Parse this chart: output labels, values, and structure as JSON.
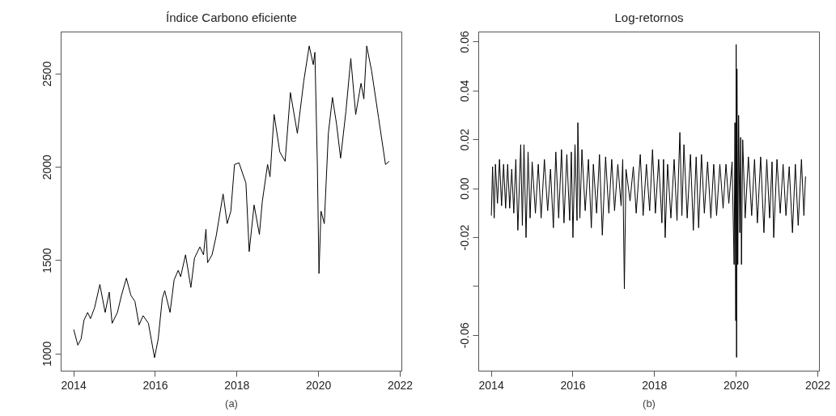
{
  "chart_data": [
    {
      "type": "line",
      "title": "Índice Carbono eficiente",
      "annotations": [
        "(a)"
      ],
      "xlim": [
        2013.69,
        2022.04
      ],
      "ylim": [
        908,
        2725
      ],
      "xticks": [
        2014,
        2016,
        2018,
        2020,
        2022
      ],
      "yticks": [
        1000,
        1500,
        2000,
        2500
      ],
      "grid": false,
      "series": [
        {
          "color": "#000000",
          "x": [
            2014.0,
            2014.1,
            2014.18,
            2014.25,
            2014.34,
            2014.41,
            2014.51,
            2014.64,
            2014.77,
            2014.87,
            2014.94,
            2015.07,
            2015.17,
            2015.29,
            2015.4,
            2015.5,
            2015.6,
            2015.7,
            2015.83,
            2015.98,
            2016.07,
            2016.17,
            2016.23,
            2016.36,
            2016.46,
            2016.56,
            2016.62,
            2016.74,
            2016.87,
            2016.96,
            2017.09,
            2017.18,
            2017.24,
            2017.28,
            2017.39,
            2017.49,
            2017.66,
            2017.76,
            2017.85,
            2017.94,
            2018.05,
            2018.22,
            2018.3,
            2018.42,
            2018.55,
            2018.62,
            2018.75,
            2018.81,
            2018.91,
            2019.05,
            2019.18,
            2019.31,
            2019.48,
            2019.64,
            2019.77,
            2019.87,
            2019.91,
            2019.97,
            2020.01,
            2020.06,
            2020.14,
            2020.24,
            2020.34,
            2020.44,
            2020.54,
            2020.67,
            2020.79,
            2020.91,
            2021.04,
            2021.11,
            2021.18,
            2021.3,
            2021.47,
            2021.64,
            2021.73
          ],
          "values": [
            1130,
            1047,
            1080,
            1180,
            1222,
            1189,
            1247,
            1372,
            1222,
            1331,
            1164,
            1222,
            1314,
            1406,
            1314,
            1281,
            1155,
            1205,
            1164,
            980,
            1080,
            1297,
            1339,
            1222,
            1397,
            1448,
            1414,
            1531,
            1356,
            1514,
            1573,
            1531,
            1668,
            1489,
            1531,
            1631,
            1857,
            1698,
            1765,
            2015,
            2024,
            1915,
            1548,
            1798,
            1640,
            1815,
            2015,
            1949,
            2283,
            2082,
            2032,
            2400,
            2182,
            2466,
            2650,
            2550,
            2616,
            2015,
            1431,
            1765,
            1698,
            2182,
            2374,
            2232,
            2049,
            2299,
            2583,
            2283,
            2450,
            2366,
            2650,
            2516,
            2266,
            2015,
            2032
          ]
        }
      ]
    },
    {
      "type": "line",
      "title": "Log-retornos",
      "annotations": [
        "(b)"
      ],
      "xlim": [
        2013.69,
        2022.04
      ],
      "ylim": [
        -0.0746,
        0.0641
      ],
      "xticks": [
        2014,
        2016,
        2018,
        2020,
        2022
      ],
      "yticks": [
        -0.06,
        {
          "value": -0.04,
          "label": null
        },
        -0.02,
        {
          "value": 0,
          "label": "0.00"
        },
        0.02,
        0.04,
        0.06
      ],
      "grid": false,
      "series": [
        {
          "color": "#000000",
          "x": [
            2014.0,
            2014.03,
            2014.07,
            2014.1,
            2014.15,
            2014.2,
            2014.25,
            2014.3,
            2014.35,
            2014.4,
            2014.45,
            2014.5,
            2014.55,
            2014.6,
            2014.65,
            2014.72,
            2014.76,
            2014.8,
            2014.85,
            2014.9,
            2014.95,
            2015.0,
            2015.08,
            2015.15,
            2015.22,
            2015.3,
            2015.38,
            2015.45,
            2015.52,
            2015.58,
            2015.65,
            2015.72,
            2015.78,
            2015.85,
            2015.92,
            2015.96,
            2016.0,
            2016.05,
            2016.1,
            2016.12,
            2016.17,
            2016.22,
            2016.3,
            2016.38,
            2016.45,
            2016.5,
            2016.58,
            2016.65,
            2016.72,
            2016.8,
            2016.88,
            2016.95,
            2017.02,
            2017.1,
            2017.18,
            2017.22,
            2017.26,
            2017.3,
            2017.4,
            2017.48,
            2017.55,
            2017.65,
            2017.72,
            2017.8,
            2017.88,
            2017.95,
            2018.02,
            2018.1,
            2018.18,
            2018.22,
            2018.26,
            2018.32,
            2018.4,
            2018.48,
            2018.55,
            2018.62,
            2018.67,
            2018.72,
            2018.8,
            2018.88,
            2018.95,
            2019.02,
            2019.08,
            2019.15,
            2019.22,
            2019.3,
            2019.38,
            2019.45,
            2019.52,
            2019.6,
            2019.68,
            2019.75,
            2019.82,
            2019.9,
            2019.95,
            2019.97,
            2019.99,
            2020.0,
            2020.01,
            2020.02,
            2020.04,
            2020.06,
            2020.09,
            2020.11,
            2020.13,
            2020.16,
            2020.22,
            2020.3,
            2020.38,
            2020.45,
            2020.52,
            2020.6,
            2020.68,
            2020.75,
            2020.82,
            2020.88,
            2020.92,
            2021.0,
            2021.08,
            2021.15,
            2021.22,
            2021.3,
            2021.38,
            2021.45,
            2021.52,
            2021.6,
            2021.66,
            2021.7
          ],
          "values": [
            -0.011,
            0.009,
            -0.012,
            0.01,
            -0.006,
            0.012,
            -0.007,
            0.01,
            -0.008,
            0.01,
            -0.008,
            0.008,
            -0.01,
            0.012,
            -0.017,
            0.018,
            -0.015,
            0.018,
            -0.02,
            0.015,
            -0.012,
            0.011,
            -0.01,
            0.01,
            -0.012,
            0.012,
            -0.009,
            0.008,
            -0.016,
            0.015,
            -0.012,
            0.016,
            -0.014,
            0.014,
            -0.013,
            0.015,
            -0.02,
            0.018,
            -0.013,
            0.027,
            -0.012,
            0.016,
            -0.009,
            0.012,
            -0.016,
            0.01,
            -0.01,
            0.014,
            -0.019,
            0.013,
            -0.01,
            0.012,
            -0.009,
            0.01,
            -0.007,
            0.012,
            -0.041,
            0.008,
            -0.005,
            0.009,
            -0.01,
            0.014,
            -0.011,
            0.01,
            -0.009,
            0.016,
            -0.01,
            0.012,
            -0.014,
            0.012,
            -0.02,
            0.01,
            -0.012,
            0.012,
            -0.013,
            0.023,
            -0.011,
            0.018,
            -0.012,
            0.014,
            -0.017,
            0.013,
            -0.016,
            0.014,
            -0.01,
            0.011,
            -0.012,
            0.01,
            -0.011,
            0.01,
            -0.008,
            0.01,
            -0.006,
            0.011,
            -0.031,
            0.027,
            -0.054,
            0.059,
            -0.069,
            0.049,
            -0.031,
            0.03,
            -0.018,
            0.021,
            -0.031,
            0.02,
            -0.012,
            0.013,
            -0.011,
            0.012,
            -0.014,
            0.013,
            -0.018,
            0.012,
            -0.012,
            0.011,
            -0.02,
            0.012,
            -0.01,
            0.01,
            -0.011,
            0.009,
            -0.018,
            0.01,
            -0.015,
            0.012,
            -0.011,
            0.005
          ]
        }
      ]
    }
  ]
}
